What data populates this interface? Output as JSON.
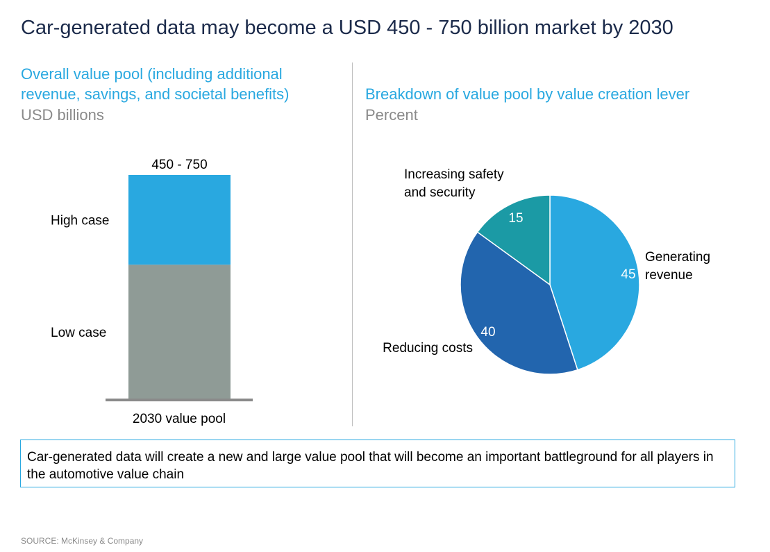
{
  "header": {
    "title": "Car-generated data may become a USD 450 - 750 billion market by 2030"
  },
  "left_panel": {
    "title": "Overall value pool (including additional revenue, savings, and societal benefits)",
    "unit": "USD billions"
  },
  "right_panel": {
    "title": "Breakdown of value pool by value creation lever",
    "unit": "Percent"
  },
  "chart_data": [
    {
      "type": "bar",
      "stacked": true,
      "categories": [
        "2030 value pool"
      ],
      "series": [
        {
          "name": "Low case",
          "values": [
            450
          ],
          "color": "#8f9b96"
        },
        {
          "name": "High case",
          "values": [
            300
          ],
          "color": "#29a8e0"
        }
      ],
      "total_label": "450 - 750",
      "ylim": [
        0,
        750
      ]
    },
    {
      "type": "pie",
      "slices": [
        {
          "label": "Generating revenue",
          "value": 45,
          "value_label": "45",
          "color": "#29a8e0"
        },
        {
          "label": "Reducing costs",
          "value": 40,
          "value_label": "40",
          "color": "#2265ae"
        },
        {
          "label": "Increasing safety and security",
          "value": 15,
          "value_label": "15",
          "color": "#1b9aa5"
        }
      ]
    }
  ],
  "takeaway": "Car-generated data will create a new and large value pool that will become an important battleground for all players in the automotive value chain",
  "source": "SOURCE: McKinsey & Company",
  "colors": {
    "title": "#1b2a4a",
    "accent": "#29a8e0",
    "unit": "#8a8a8a"
  }
}
